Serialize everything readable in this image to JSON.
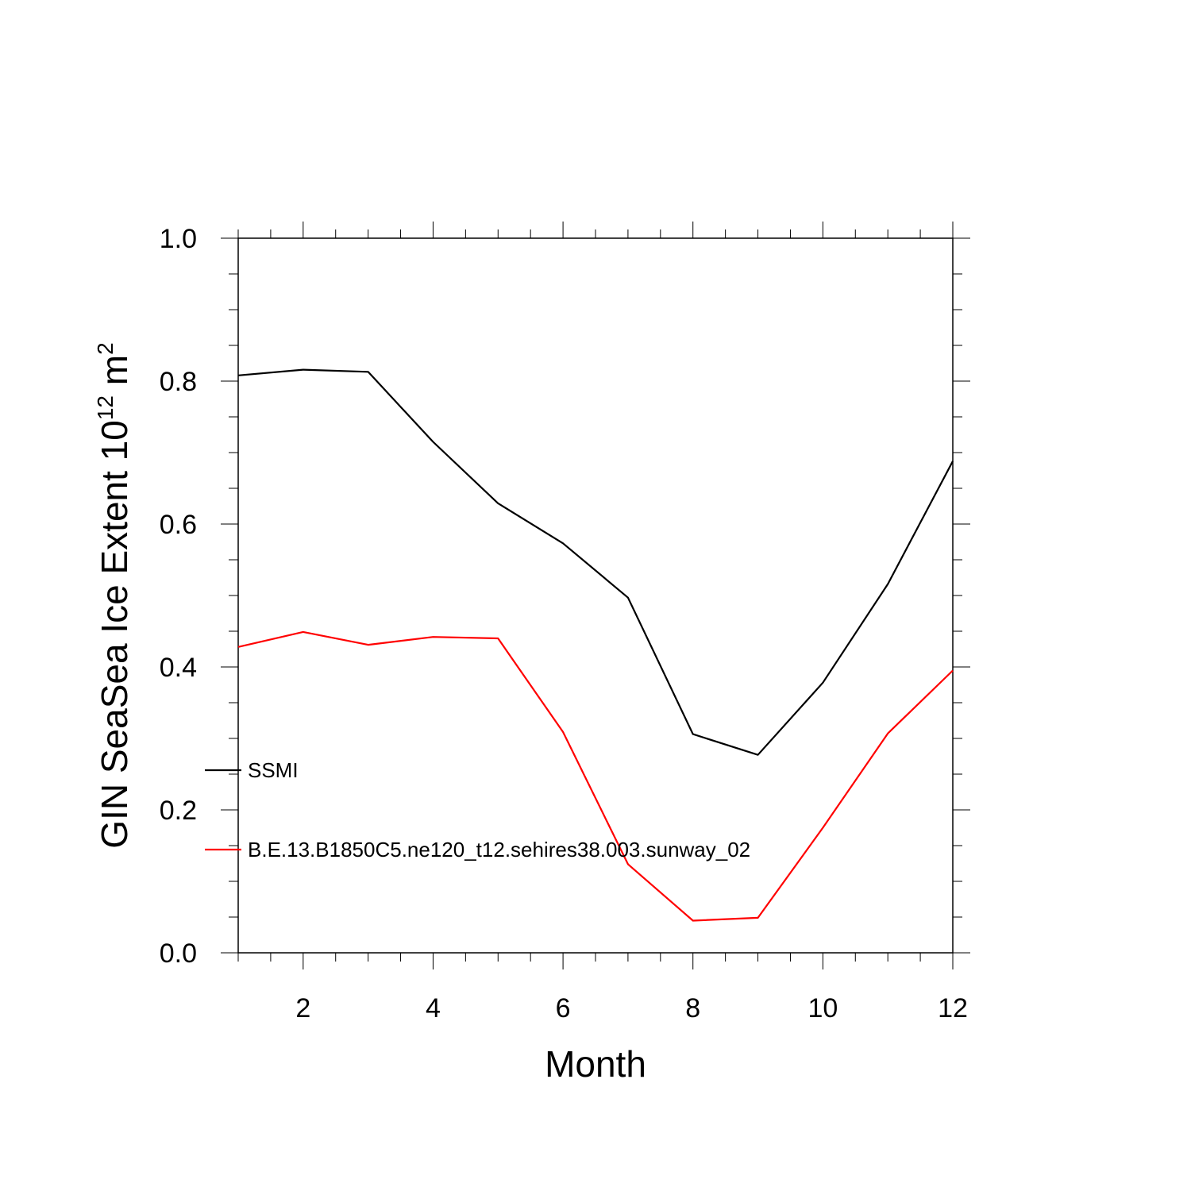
{
  "chart_data": {
    "type": "line",
    "title": "",
    "xlabel": "Month",
    "ylabel": {
      "main": "GIN SeaSea Ice Extent 10",
      "exponent": "12",
      "unit": " m",
      "unit_exponent": "2"
    },
    "xlim": [
      1,
      12
    ],
    "ylim": [
      0.0,
      1.0
    ],
    "x_ticks": [
      2,
      4,
      6,
      8,
      10,
      12
    ],
    "x_tick_labels": [
      "2",
      "4",
      "6",
      "8",
      "10",
      "12"
    ],
    "y_ticks": [
      0.0,
      0.2,
      0.4,
      0.6,
      0.8,
      1.0
    ],
    "y_tick_labels": [
      "0.0",
      "0.2",
      "0.4",
      "0.6",
      "0.8",
      "1.0"
    ],
    "grid": false,
    "legend_position": "left-inside, lower half",
    "x": [
      1,
      2,
      3,
      4,
      5,
      6,
      7,
      8,
      9,
      10,
      11,
      12
    ],
    "series": [
      {
        "name": "SSMI",
        "color": "#000000",
        "values": [
          0.808,
          0.816,
          0.813,
          0.715,
          0.629,
          0.573,
          0.497,
          0.306,
          0.277,
          0.378,
          0.516,
          0.688
        ]
      },
      {
        "name": "B.E.13.B1850C5.ne120_t12.sehires38.003.sunway_02",
        "color": "#ff0000",
        "values": [
          0.428,
          0.449,
          0.431,
          0.442,
          0.44,
          0.309,
          0.124,
          0.045,
          0.049,
          0.175,
          0.307,
          0.395
        ]
      }
    ]
  }
}
